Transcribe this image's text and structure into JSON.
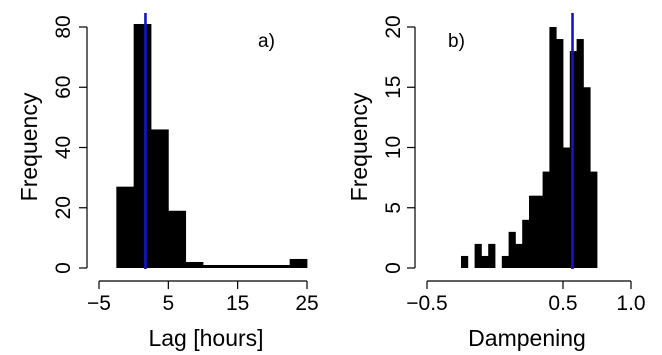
{
  "chart_data": [
    {
      "type": "bar",
      "histogram": true,
      "panel_label": "a)",
      "xlabel": "Lag [hours]",
      "ylabel": "Frequency",
      "xlim": [
        -5,
        25
      ],
      "ylim": [
        0,
        80
      ],
      "xticks": [
        -5,
        5,
        15,
        25
      ],
      "xtick_labels": [
        "−5",
        "5",
        "15",
        "25"
      ],
      "yticks": [
        0,
        20,
        40,
        60,
        80
      ],
      "ytick_labels": [
        "0",
        "20",
        "40",
        "60",
        "80"
      ],
      "bins": [
        {
          "x0": -2.5,
          "x1": 0,
          "count": 27
        },
        {
          "x0": 0,
          "x1": 2.5,
          "count": 81
        },
        {
          "x0": 2.5,
          "x1": 5,
          "count": 46
        },
        {
          "x0": 5,
          "x1": 7.5,
          "count": 19
        },
        {
          "x0": 7.5,
          "x1": 10,
          "count": 2
        },
        {
          "x0": 10,
          "x1": 12.5,
          "count": 1
        },
        {
          "x0": 12.5,
          "x1": 15,
          "count": 1
        },
        {
          "x0": 15,
          "x1": 17.5,
          "count": 1
        },
        {
          "x0": 17.5,
          "x1": 20,
          "count": 1
        },
        {
          "x0": 20,
          "x1": 22.5,
          "count": 1
        },
        {
          "x0": 22.5,
          "x1": 25,
          "count": 3
        }
      ],
      "vline": 1.7,
      "vline_color": "#1515c8",
      "bar_color": "#000000",
      "grid": false
    },
    {
      "type": "bar",
      "histogram": true,
      "panel_label": "b)",
      "xlabel": "Dampening",
      "ylabel": "Frequency",
      "xlim": [
        -0.5,
        1.0
      ],
      "ylim": [
        0,
        20
      ],
      "xticks": [
        -0.5,
        0.5,
        1.0
      ],
      "xtick_labels": [
        "−0.5",
        "0.5",
        "1.0"
      ],
      "yticks": [
        0,
        5,
        10,
        15,
        20
      ],
      "ytick_labels": [
        "0",
        "5",
        "10",
        "15",
        "20"
      ],
      "bin_start": -0.25,
      "bin_width": 0.05,
      "counts": [
        1,
        0,
        2,
        1,
        2,
        0,
        1,
        3,
        2,
        4,
        6,
        6,
        8,
        20,
        19,
        10,
        18,
        19,
        15,
        8
      ],
      "vline": 0.57,
      "vline_color": "#1515c8",
      "bar_color": "#000000",
      "grid": false
    }
  ]
}
